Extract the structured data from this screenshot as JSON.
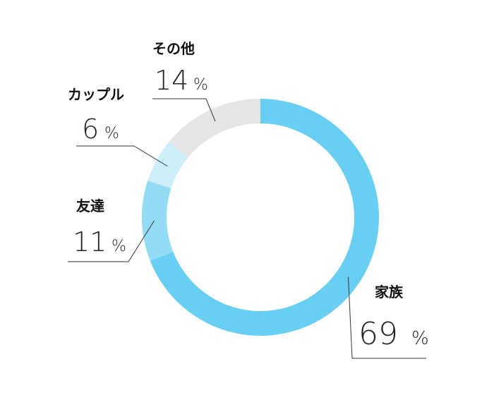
{
  "chart_data": {
    "type": "pie",
    "style": "donut",
    "title": "",
    "unit": "%",
    "slices": [
      {
        "name": "家族",
        "value": 69,
        "color": "#68cff3"
      },
      {
        "name": "友達",
        "value": 11,
        "color": "#93dcf5"
      },
      {
        "name": "カップル",
        "value": 6,
        "color": "#cdeefa"
      },
      {
        "name": "その他",
        "value": 14,
        "color": "#e5e5e5"
      }
    ]
  }
}
